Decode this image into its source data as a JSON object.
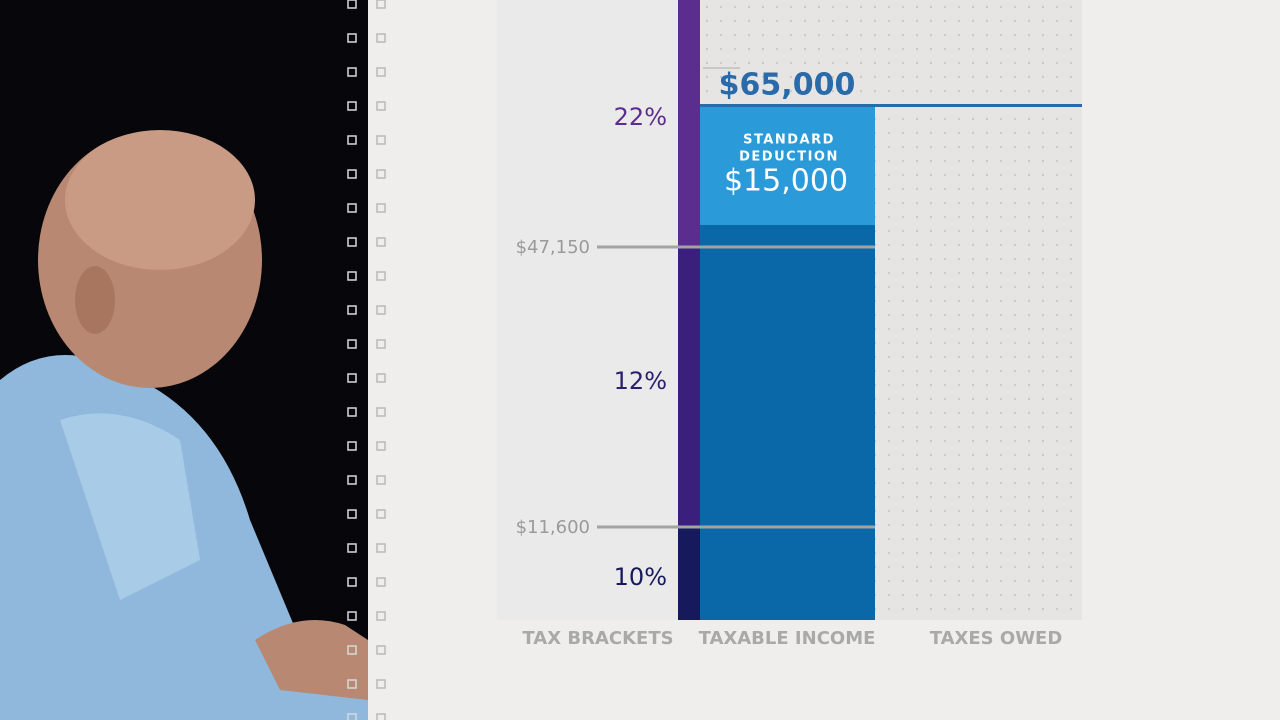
{
  "columns": [
    "TAX BRACKETS",
    "TAXABLE INCOME",
    "TAXES OWED"
  ],
  "brackets": [
    {
      "rate": "22%"
    },
    {
      "rate": "12%"
    },
    {
      "rate": "10%"
    }
  ],
  "thresholds": [
    "$47,150",
    "$11,600"
  ],
  "income": "$65,000",
  "deduction": {
    "label": [
      "STANDARD",
      "DEDUCTION"
    ],
    "amount": "$15,000"
  }
}
